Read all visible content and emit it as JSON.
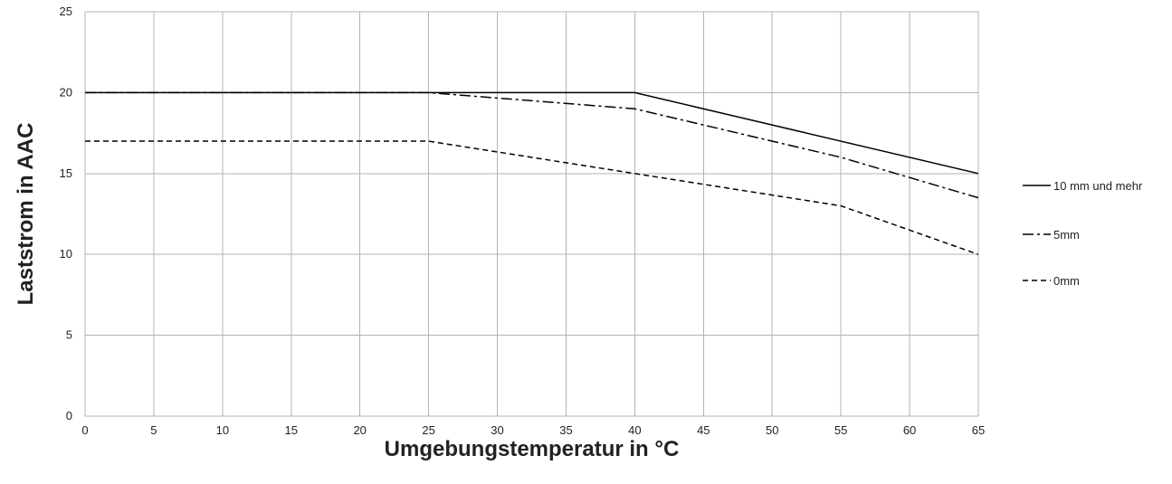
{
  "chart_data": {
    "type": "line",
    "xlabel": "Umgebungstemperatur in °C",
    "ylabel": "Laststrom in AAC",
    "xlim": [
      0,
      65
    ],
    "ylim": [
      0,
      25
    ],
    "x_ticks": [
      0,
      5,
      10,
      15,
      20,
      25,
      30,
      35,
      40,
      45,
      50,
      55,
      60,
      65
    ],
    "y_ticks": [
      0,
      5,
      10,
      15,
      20,
      25
    ],
    "grid": true,
    "legend_position": "right",
    "series": [
      {
        "name": "10 mm und mehr",
        "line_style": "solid",
        "color": "#000000",
        "x": [
          0,
          25,
          40,
          65
        ],
        "y": [
          20,
          20,
          20,
          15
        ]
      },
      {
        "name": "5mm",
        "line_style": "dash-dot",
        "color": "#000000",
        "x": [
          0,
          25,
          40,
          55,
          65
        ],
        "y": [
          20,
          20,
          19,
          16,
          13.5
        ]
      },
      {
        "name": "0mm",
        "line_style": "dashed",
        "color": "#000000",
        "x": [
          0,
          25,
          40,
          55,
          65
        ],
        "y": [
          17,
          17,
          15,
          13,
          10
        ]
      }
    ]
  }
}
